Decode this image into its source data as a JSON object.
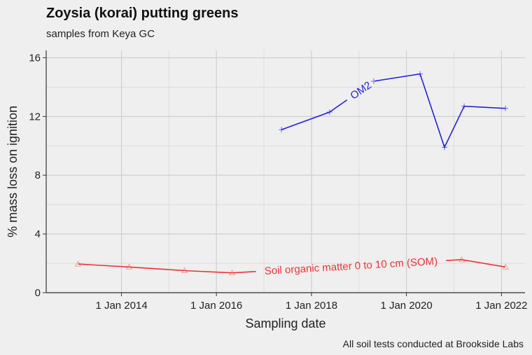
{
  "chart_data": {
    "type": "line",
    "title": "Zoysia (korai) putting greens",
    "subtitle": "samples from Keya GC",
    "caption": "All soil tests conducted at Brookside Labs",
    "xlabel": "Sampling date",
    "ylabel": "% mass loss on ignition",
    "xlim": [
      "2012-06-01",
      "2022-07-01"
    ],
    "ylim": [
      0,
      16.5
    ],
    "xticks": [
      {
        "date": "2014-01-01",
        "label": "1 Jan 2014"
      },
      {
        "date": "2016-01-01",
        "label": "1 Jan 2016"
      },
      {
        "date": "2018-01-01",
        "label": "1 Jan 2018"
      },
      {
        "date": "2020-01-01",
        "label": "1 Jan 2020"
      },
      {
        "date": "2022-01-01",
        "label": "1 Jan 2022"
      }
    ],
    "yticks": [
      0,
      4,
      8,
      12,
      16
    ],
    "grid": true,
    "series": [
      {
        "name": "OM2",
        "color": "#2222dd",
        "marker": "plus",
        "points": [
          {
            "x": "2017-05-15",
            "y": 11.1
          },
          {
            "x": "2018-05-20",
            "y": 12.3
          },
          {
            "x": "2019-04-25",
            "y": 14.4
          },
          {
            "x": "2020-04-15",
            "y": 14.9
          },
          {
            "x": "2020-10-20",
            "y": 9.9
          },
          {
            "x": "2021-03-20",
            "y": 12.7
          },
          {
            "x": "2022-02-01",
            "y": 12.55
          }
        ],
        "label_at": "2019-01-15"
      },
      {
        "name": "Soil organic matter 0 to 10 cm (SOM)",
        "color": "#ee3333",
        "marker": "triangle",
        "points": [
          {
            "x": "2013-02-01",
            "y": 1.95
          },
          {
            "x": "2014-03-01",
            "y": 1.75
          },
          {
            "x": "2015-05-01",
            "y": 1.5
          },
          {
            "x": "2016-05-01",
            "y": 1.35
          },
          {
            "x": "2021-03-01",
            "y": 2.25
          },
          {
            "x": "2022-02-01",
            "y": 1.75
          }
        ],
        "label_at": "2018-11-01"
      }
    ]
  }
}
